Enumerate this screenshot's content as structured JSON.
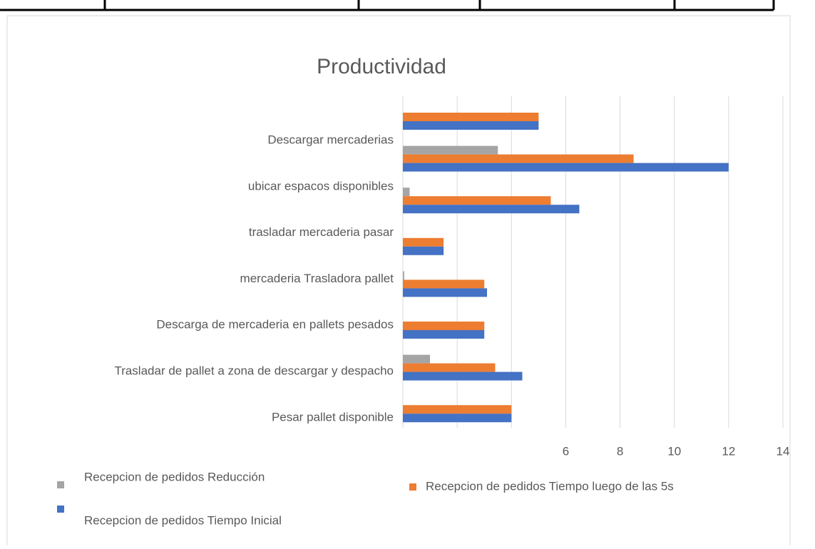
{
  "chart_data": {
    "type": "barh",
    "title": "Productividad",
    "categories": [
      null,
      "Descargar mercaderias",
      "ubicar espacos disponibles",
      "trasladar mercaderia   pasar",
      "mercaderia Trasladora pallet",
      "Descarga de mercaderia en pallets pesados",
      "Trasladar de pallet a zona de descargar y despacho",
      "Pesar pallet disponible"
    ],
    "series": [
      {
        "name": "Recepcion de pedidos Reducción",
        "color": "#a5a5a5",
        "values": [
          null,
          3.5,
          0.25,
          null,
          0.05,
          null,
          1.0,
          null
        ]
      },
      {
        "name": "Recepcion de pedidos Tiempo luego de las 5s",
        "color": "#ed7d31",
        "values": [
          5.0,
          8.5,
          5.45,
          1.5,
          3.0,
          3.0,
          3.4,
          4.0
        ]
      },
      {
        "name": "Recepcion de pedidos Tiempo Inicial",
        "color": "#4472c4",
        "values": [
          5.0,
          12,
          6.5,
          1.5,
          3.1,
          3.0,
          4.4,
          4.0
        ]
      }
    ],
    "xlim": [
      0,
      14
    ],
    "xticks": [
      6,
      8,
      10,
      12,
      14
    ],
    "xgrid": [
      0,
      2,
      4,
      6,
      8,
      10,
      12,
      14
    ]
  }
}
